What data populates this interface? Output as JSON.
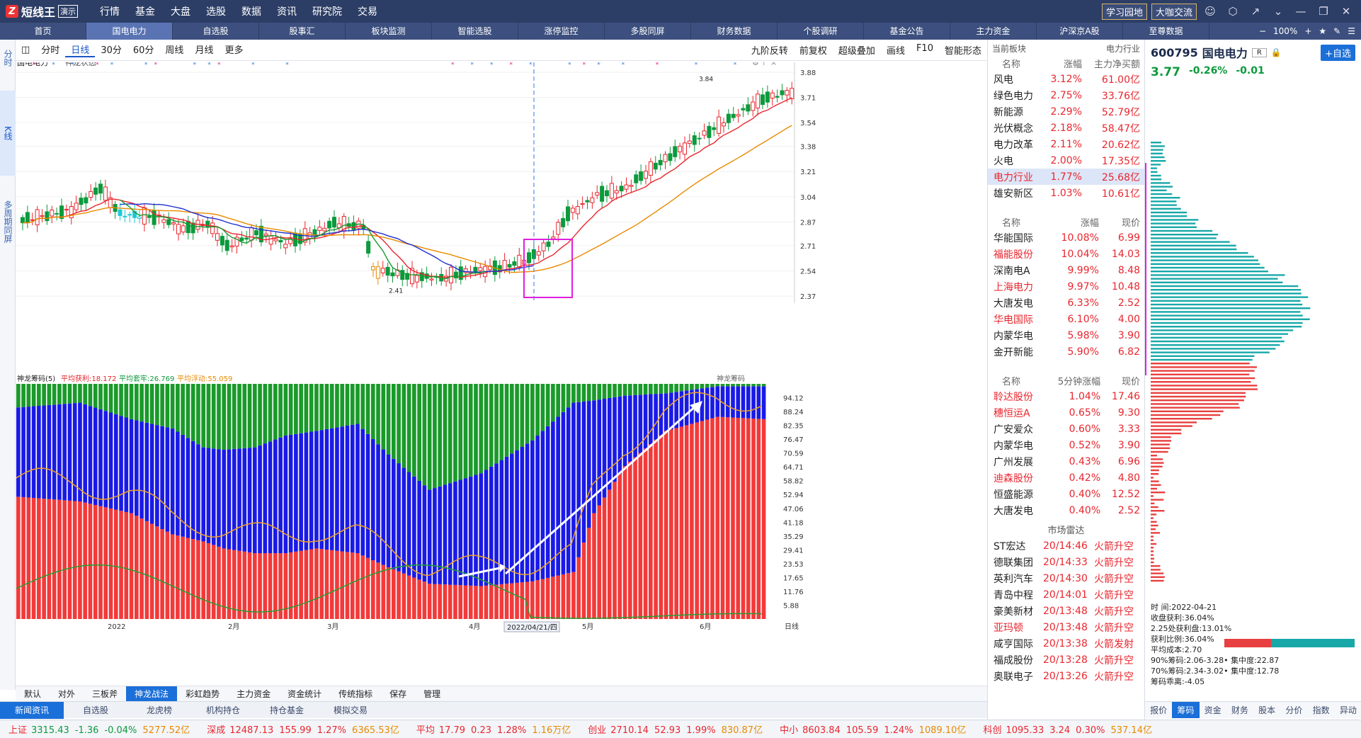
{
  "app": {
    "logo": "短线王",
    "demo_badge": "演示",
    "menu": [
      "行情",
      "基金",
      "大盘",
      "选股",
      "数据",
      "资讯",
      "研究院",
      "交易"
    ],
    "right_buttons": [
      "学习园地",
      "大咖交流"
    ]
  },
  "nav": {
    "items": [
      "首页",
      "国电电力",
      "自选股",
      "股事汇",
      "板块监测",
      "智能选股",
      "涨停监控",
      "多股同屏",
      "财务数据",
      "个股调研",
      "基金公告",
      "主力资金",
      "沪深京A股",
      "至尊数据"
    ],
    "active": 1,
    "zoom": "100%"
  },
  "left_strip": [
    "分时",
    "K线",
    "多周期同屏"
  ],
  "chart_toolbar": {
    "periods": [
      "分时",
      "日线",
      "30分",
      "60分",
      "周线",
      "月线",
      "更多"
    ],
    "selected": "日线",
    "right": [
      "九阶反转",
      "前复权",
      "超级叠加",
      "画线",
      "F10",
      "智能形态"
    ]
  },
  "kchart": {
    "stock_label": "国电电力",
    "overlay_label": "神龙状态",
    "y_ticks": [
      "3.88",
      "3.71",
      "3.54",
      "3.38",
      "3.21",
      "3.04",
      "2.87",
      "2.71",
      "2.54",
      "2.37"
    ],
    "high_label": "3.84",
    "low_label": "2.41",
    "x_ticks": [
      "2022",
      "2月",
      "3月",
      "4月",
      "5月",
      "6月"
    ],
    "cursor_date": "2022/04/21/四",
    "colors": {
      "up": "#e8262e",
      "down": "#0b9a3c",
      "ma_red": "#e8262e",
      "ma_orange": "#e88a00",
      "ma_blue": "#1f2fd0",
      "ma_green": "#149a2c"
    }
  },
  "indicator": {
    "name": "神龙筹码(5)",
    "stats": [
      {
        "label": "平均获利:18.172",
        "color": "#e8262e"
      },
      {
        "label": "平均套牢:26.769",
        "color": "#0b9a3c"
      },
      {
        "label": "平均浮动:55.059",
        "color": "#e88a00"
      }
    ],
    "right_label": "神龙筹码",
    "y_ticks": [
      "94.12",
      "88.24",
      "82.35",
      "76.47",
      "70.59",
      "64.71",
      "58.82",
      "52.94",
      "47.06",
      "41.18",
      "35.29",
      "29.41",
      "23.53",
      "17.65",
      "11.76",
      "5.88"
    ]
  },
  "bottom_tabs": [
    "默认",
    "对外",
    "三板斧",
    "神龙战法",
    "彩虹趋势",
    "主力资金",
    "资金统计",
    "传统指标",
    "保存",
    "管理"
  ],
  "bottom_tab_selected": "神龙战法",
  "news_tabs": [
    "新闻资讯",
    "自选股",
    "龙虎榜",
    "机构持仓",
    "持仓基金",
    "模拟交易"
  ],
  "mid": {
    "board_header": "当前板块",
    "board_sector": "电力行业",
    "t1_headers": [
      "名称",
      "涨幅",
      "主力净买额"
    ],
    "t1_rows": [
      [
        "风电",
        "3.12%",
        "61.00亿"
      ],
      [
        "绿色电力",
        "2.75%",
        "33.76亿"
      ],
      [
        "新能源",
        "2.29%",
        "52.79亿"
      ],
      [
        "光伏概念",
        "2.18%",
        "58.47亿"
      ],
      [
        "电力改革",
        "2.11%",
        "20.62亿"
      ],
      [
        "火电",
        "2.00%",
        "17.35亿"
      ],
      [
        "电力行业",
        "1.77%",
        "25.68亿"
      ],
      [
        "雄安新区",
        "1.03%",
        "10.61亿"
      ]
    ],
    "t2_headers": [
      "名称",
      "涨幅",
      "现价"
    ],
    "t2_rows": [
      [
        "华能国际",
        "10.08%",
        "6.99"
      ],
      [
        "福能股份",
        "10.04%",
        "14.03"
      ],
      [
        "深南电A",
        "9.99%",
        "8.48"
      ],
      [
        "上海电力",
        "9.97%",
        "10.48"
      ],
      [
        "大唐发电",
        "6.33%",
        "2.52"
      ],
      [
        "华电国际",
        "6.10%",
        "4.00"
      ],
      [
        "内蒙华电",
        "5.98%",
        "3.90"
      ],
      [
        "金开新能",
        "5.90%",
        "6.82"
      ]
    ],
    "t3_headers": [
      "名称",
      "5分钟涨幅",
      "现价"
    ],
    "t3_rows": [
      [
        "聆达股份",
        "1.04%",
        "17.46"
      ],
      [
        "穗恒运A",
        "0.65%",
        "9.30"
      ],
      [
        "广安爱众",
        "0.60%",
        "3.33"
      ],
      [
        "内蒙华电",
        "0.52%",
        "3.90"
      ],
      [
        "广州发展",
        "0.43%",
        "6.96"
      ],
      [
        "迪森股份",
        "0.42%",
        "4.80"
      ],
      [
        "恒盛能源",
        "0.40%",
        "12.52"
      ],
      [
        "大唐发电",
        "0.40%",
        "2.52"
      ]
    ],
    "radar_title": "市场雷达",
    "radar_rows": [
      [
        "ST宏达",
        "20/14:46",
        "火箭升空"
      ],
      [
        "德联集团",
        "20/14:33",
        "火箭升空"
      ],
      [
        "英利汽车",
        "20/14:30",
        "火箭升空"
      ],
      [
        "青岛中程",
        "20/14:01",
        "火箭升空"
      ],
      [
        "豪美新材",
        "20/13:48",
        "火箭升空"
      ],
      [
        "亚玛顿",
        "20/13:48",
        "火箭升空"
      ],
      [
        "咸亨国际",
        "20/13:38",
        "火箭发射"
      ],
      [
        "福成股份",
        "20/13:28",
        "火箭升空"
      ],
      [
        "奥联电子",
        "20/13:26",
        "火箭升空"
      ]
    ]
  },
  "quote": {
    "code": "600795",
    "name": "国电电力",
    "add_label": "+自选",
    "price": "3.77",
    "change_pct": "-0.26%",
    "change": "-0.01",
    "chip_lines": [
      "时      间:2022-04-21",
      "收盘获利:36.04%",
      "2.25处获利盘:13.01%",
      "获利比例:36.04%",
      "平均成本:2.70",
      "90%筹码:2.06-3.28• 集中度:22.87",
      "70%筹码:2.34-3.02• 集中度:12.78",
      "筹码乖离:-4.05"
    ],
    "profit_ratio": 0.3604,
    "tabs": [
      "报价",
      "筹码",
      "资金",
      "财务",
      "股本",
      "分价",
      "指数",
      "异动"
    ],
    "tab_selected": "筹码"
  },
  "status": [
    {
      "name": "上证",
      "val": "3315.43",
      "chg": "-1.36",
      "pct": "-0.04%",
      "amt": "5277.52亿",
      "dir": "down"
    },
    {
      "name": "深成",
      "val": "12487.13",
      "chg": "155.99",
      "pct": "1.27%",
      "amt": "6365.53亿",
      "dir": "up"
    },
    {
      "name": "平均",
      "val": "17.79",
      "chg": "0.23",
      "pct": "1.28%",
      "amt": "1.16万亿",
      "dir": "up"
    },
    {
      "name": "创业",
      "val": "2710.14",
      "chg": "52.93",
      "pct": "1.99%",
      "amt": "830.87亿",
      "dir": "up"
    },
    {
      "name": "中小",
      "val": "8603.84",
      "chg": "105.59",
      "pct": "1.24%",
      "amt": "1089.10亿",
      "dir": "up"
    },
    {
      "name": "科创",
      "val": "1095.33",
      "chg": "3.24",
      "pct": "0.30%",
      "amt": "537.14亿",
      "dir": "up"
    }
  ]
}
